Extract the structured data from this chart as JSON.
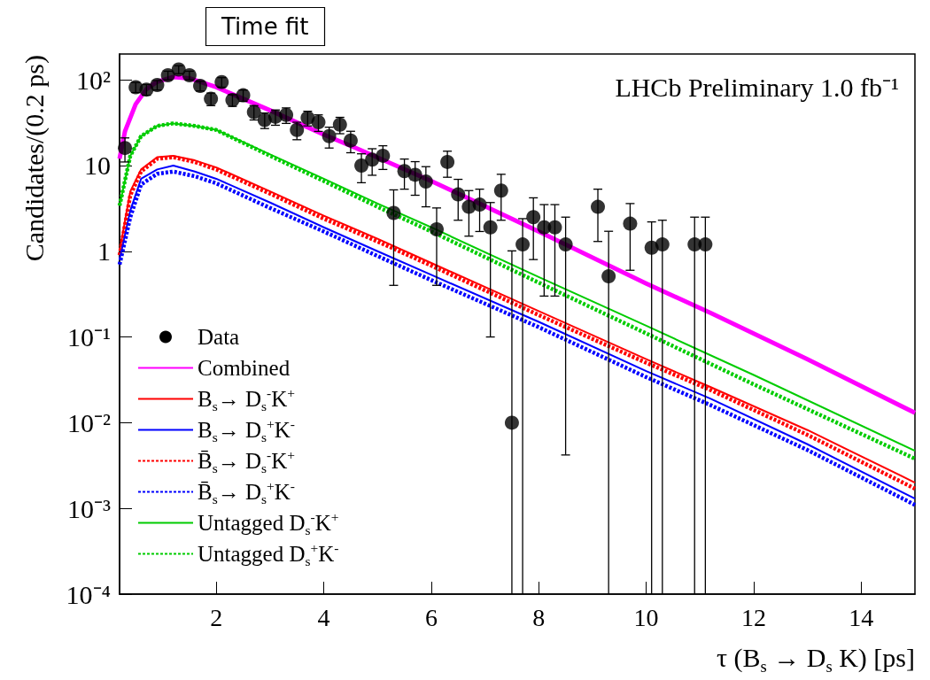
{
  "chart_data": {
    "type": "line",
    "title": "Time fit",
    "xlabel": "τ (B$_{s}$ → D$_{s}$ K) [ps]",
    "ylabel": "Candidates/(0.2 ps)",
    "annotations": [
      "LHCb Preliminary 1.0 fb⁻¹"
    ],
    "log": "y",
    "grid": false,
    "legend": "bottom left",
    "xlim": [
      0.2,
      15
    ],
    "xticks": [
      2,
      4,
      6,
      8,
      10,
      12,
      14
    ],
    "ylim": [
      0.0001,
      200
    ],
    "yticks": [
      {
        "value": 0.0001,
        "label": "10⁻⁴"
      },
      {
        "value": 0.001,
        "label": "10⁻³"
      },
      {
        "value": 0.01,
        "label": "10⁻²"
      },
      {
        "value": 0.1,
        "label": "10⁻¹"
      },
      1,
      10,
      {
        "value": 100,
        "label": "10²"
      }
    ],
    "series": [
      {
        "name": "Data",
        "type": "scatter",
        "marker": "circle",
        "color": "#000000",
        "x": [
          0.3,
          0.5,
          0.7,
          0.9,
          1.1,
          1.3,
          1.5,
          1.7,
          1.9,
          2.1,
          2.3,
          2.5,
          2.7,
          2.9,
          3.1,
          3.3,
          3.5,
          3.7,
          3.9,
          4.1,
          4.3,
          4.5,
          4.7,
          4.9,
          5.1,
          5.3,
          5.5,
          5.7,
          5.9,
          6.1,
          6.3,
          6.5,
          6.7,
          6.9,
          7.1,
          7.3,
          7.5,
          7.7,
          7.9,
          8.1,
          8.3,
          8.5,
          9.1,
          9.3,
          9.7,
          10.1,
          10.3,
          10.9,
          11.1
        ],
        "values": [
          16,
          82,
          77,
          87,
          113,
          132,
          113,
          85,
          60,
          94,
          58,
          66,
          42,
          34,
          37,
          39,
          26,
          36,
          32,
          22,
          30,
          19.6,
          10,
          11.7,
          13,
          2.8,
          8.6,
          7.8,
          6.5,
          1.8,
          11,
          4.6,
          3.3,
          3.5,
          1.9,
          5.1,
          0.01,
          1.2,
          2.5,
          1.9,
          1.9,
          1.2,
          3.3,
          0.51,
          2.1,
          1.1,
          1.2,
          1.2,
          1.2
        ],
        "errors": [
          5,
          11,
          11,
          11,
          13,
          14,
          13,
          11,
          10,
          12,
          9,
          10,
          8,
          7,
          7.5,
          8,
          6,
          7,
          7,
          6,
          6.5,
          5.5,
          3.7,
          4,
          4,
          2.4,
          3.3,
          3.3,
          3.2,
          1.4,
          3.7,
          2.3,
          1.8,
          1.8,
          1.8,
          2.8,
          [
            0.0001,
            1.01
          ],
          [
            0.0001,
            2.4
          ],
          1.7,
          1.6,
          1.6,
          [
            0.0042,
            2.5
          ],
          2.0,
          [
            0.0001,
            1.71
          ],
          1.5,
          [
            0.0001,
            2.2
          ],
          [
            0.0001,
            2.3
          ],
          [
            0.0001,
            2.5
          ],
          [
            0.0001,
            2.5
          ]
        ]
      },
      {
        "name": "Combined",
        "color": "#ff00ff",
        "line_style": "solid",
        "x": [
          0.2,
          0.3,
          0.5,
          0.7,
          0.9,
          1.2,
          1.5,
          2,
          3,
          4,
          4.6,
          6,
          8,
          10,
          11.2,
          13,
          15
        ],
        "values": [
          12,
          25,
          52,
          78,
          95,
          108,
          104,
          82,
          44,
          23,
          16,
          6.6,
          1.7,
          0.42,
          0.19,
          0.055,
          0.013
        ]
      },
      {
        "name": "B$_{s}$→ D$_{s}$$^{-}$K$^{+}$",
        "color": "#ff0000",
        "line_style": "solid",
        "x": [
          0.2,
          0.4,
          0.6,
          0.9,
          1.2,
          1.6,
          2,
          3,
          4,
          5,
          6,
          8,
          10,
          11.2,
          13,
          15
        ],
        "values": [
          1,
          5,
          9,
          12.5,
          13,
          11.5,
          9.5,
          5,
          2.6,
          1.4,
          0.73,
          0.2,
          0.055,
          0.026,
          0.0082,
          0.002
        ]
      },
      {
        "name": "B$_{s}$→ D$_{s}$$^{+}$K$^{-}$",
        "color": "#0000ff",
        "line_style": "solid",
        "x": [
          0.2,
          0.4,
          0.6,
          0.9,
          1.2,
          1.6,
          2,
          3,
          4,
          5,
          6,
          8,
          10,
          11.2,
          13,
          15
        ],
        "values": [
          0.8,
          3,
          7,
          9,
          10,
          8.5,
          7,
          3.7,
          1.9,
          1.0,
          0.53,
          0.15,
          0.04,
          0.019,
          0.0056,
          0.0013
        ]
      },
      {
        "name": "B̄$_{s}$→ D$_{s}$$^{-}$K$^{+}$",
        "color": "#ff0000",
        "line_style": "dashed",
        "x": [
          0.2,
          0.4,
          0.6,
          0.9,
          1.2,
          1.6,
          2,
          3,
          4,
          5,
          6,
          8,
          10,
          11.2,
          13,
          15
        ],
        "values": [
          0.9,
          4.5,
          8.5,
          12,
          12.5,
          11,
          9,
          4.7,
          2.4,
          1.3,
          0.68,
          0.18,
          0.05,
          0.024,
          0.0072,
          0.0017
        ]
      },
      {
        "name": "B̄$_{s}$→ D$_{s}$$^{+}$K$^{-}$",
        "color": "#0000ff",
        "line_style": "dashed",
        "x": [
          0.2,
          0.4,
          0.6,
          0.9,
          1.2,
          1.6,
          2,
          3,
          4,
          5,
          6,
          8,
          10,
          11.2,
          13,
          15
        ],
        "values": [
          0.7,
          2.5,
          6,
          8,
          8.5,
          7.5,
          6.2,
          3.2,
          1.7,
          0.88,
          0.46,
          0.13,
          0.034,
          0.016,
          0.0048,
          0.0011
        ]
      },
      {
        "name": "Untagged D$_{s}$$^{-}$K$^{+}$",
        "color": "#00cc00",
        "line_style": "solid",
        "x": [
          0.2,
          0.4,
          0.6,
          0.9,
          1.2,
          1.6,
          2,
          3,
          4,
          5,
          6,
          8,
          10,
          12,
          15
        ],
        "values": [
          3.4,
          13,
          22,
          29,
          31,
          29,
          26,
          13.5,
          7,
          3.6,
          1.9,
          0.5,
          0.135,
          0.036,
          0.0047
        ]
      },
      {
        "name": "Untagged D$_{s}$$^{+}$K$^{-}$",
        "color": "#00cc00",
        "line_style": "dashed",
        "x": [
          0.2,
          0.4,
          0.6,
          0.9,
          1.2,
          1.6,
          2,
          3,
          4,
          5,
          6,
          8,
          10,
          12,
          15
        ],
        "values": [
          3.4,
          13,
          22,
          29,
          31,
          29,
          26,
          13,
          6.6,
          3.3,
          1.7,
          0.43,
          0.11,
          0.028,
          0.0038
        ]
      }
    ]
  }
}
